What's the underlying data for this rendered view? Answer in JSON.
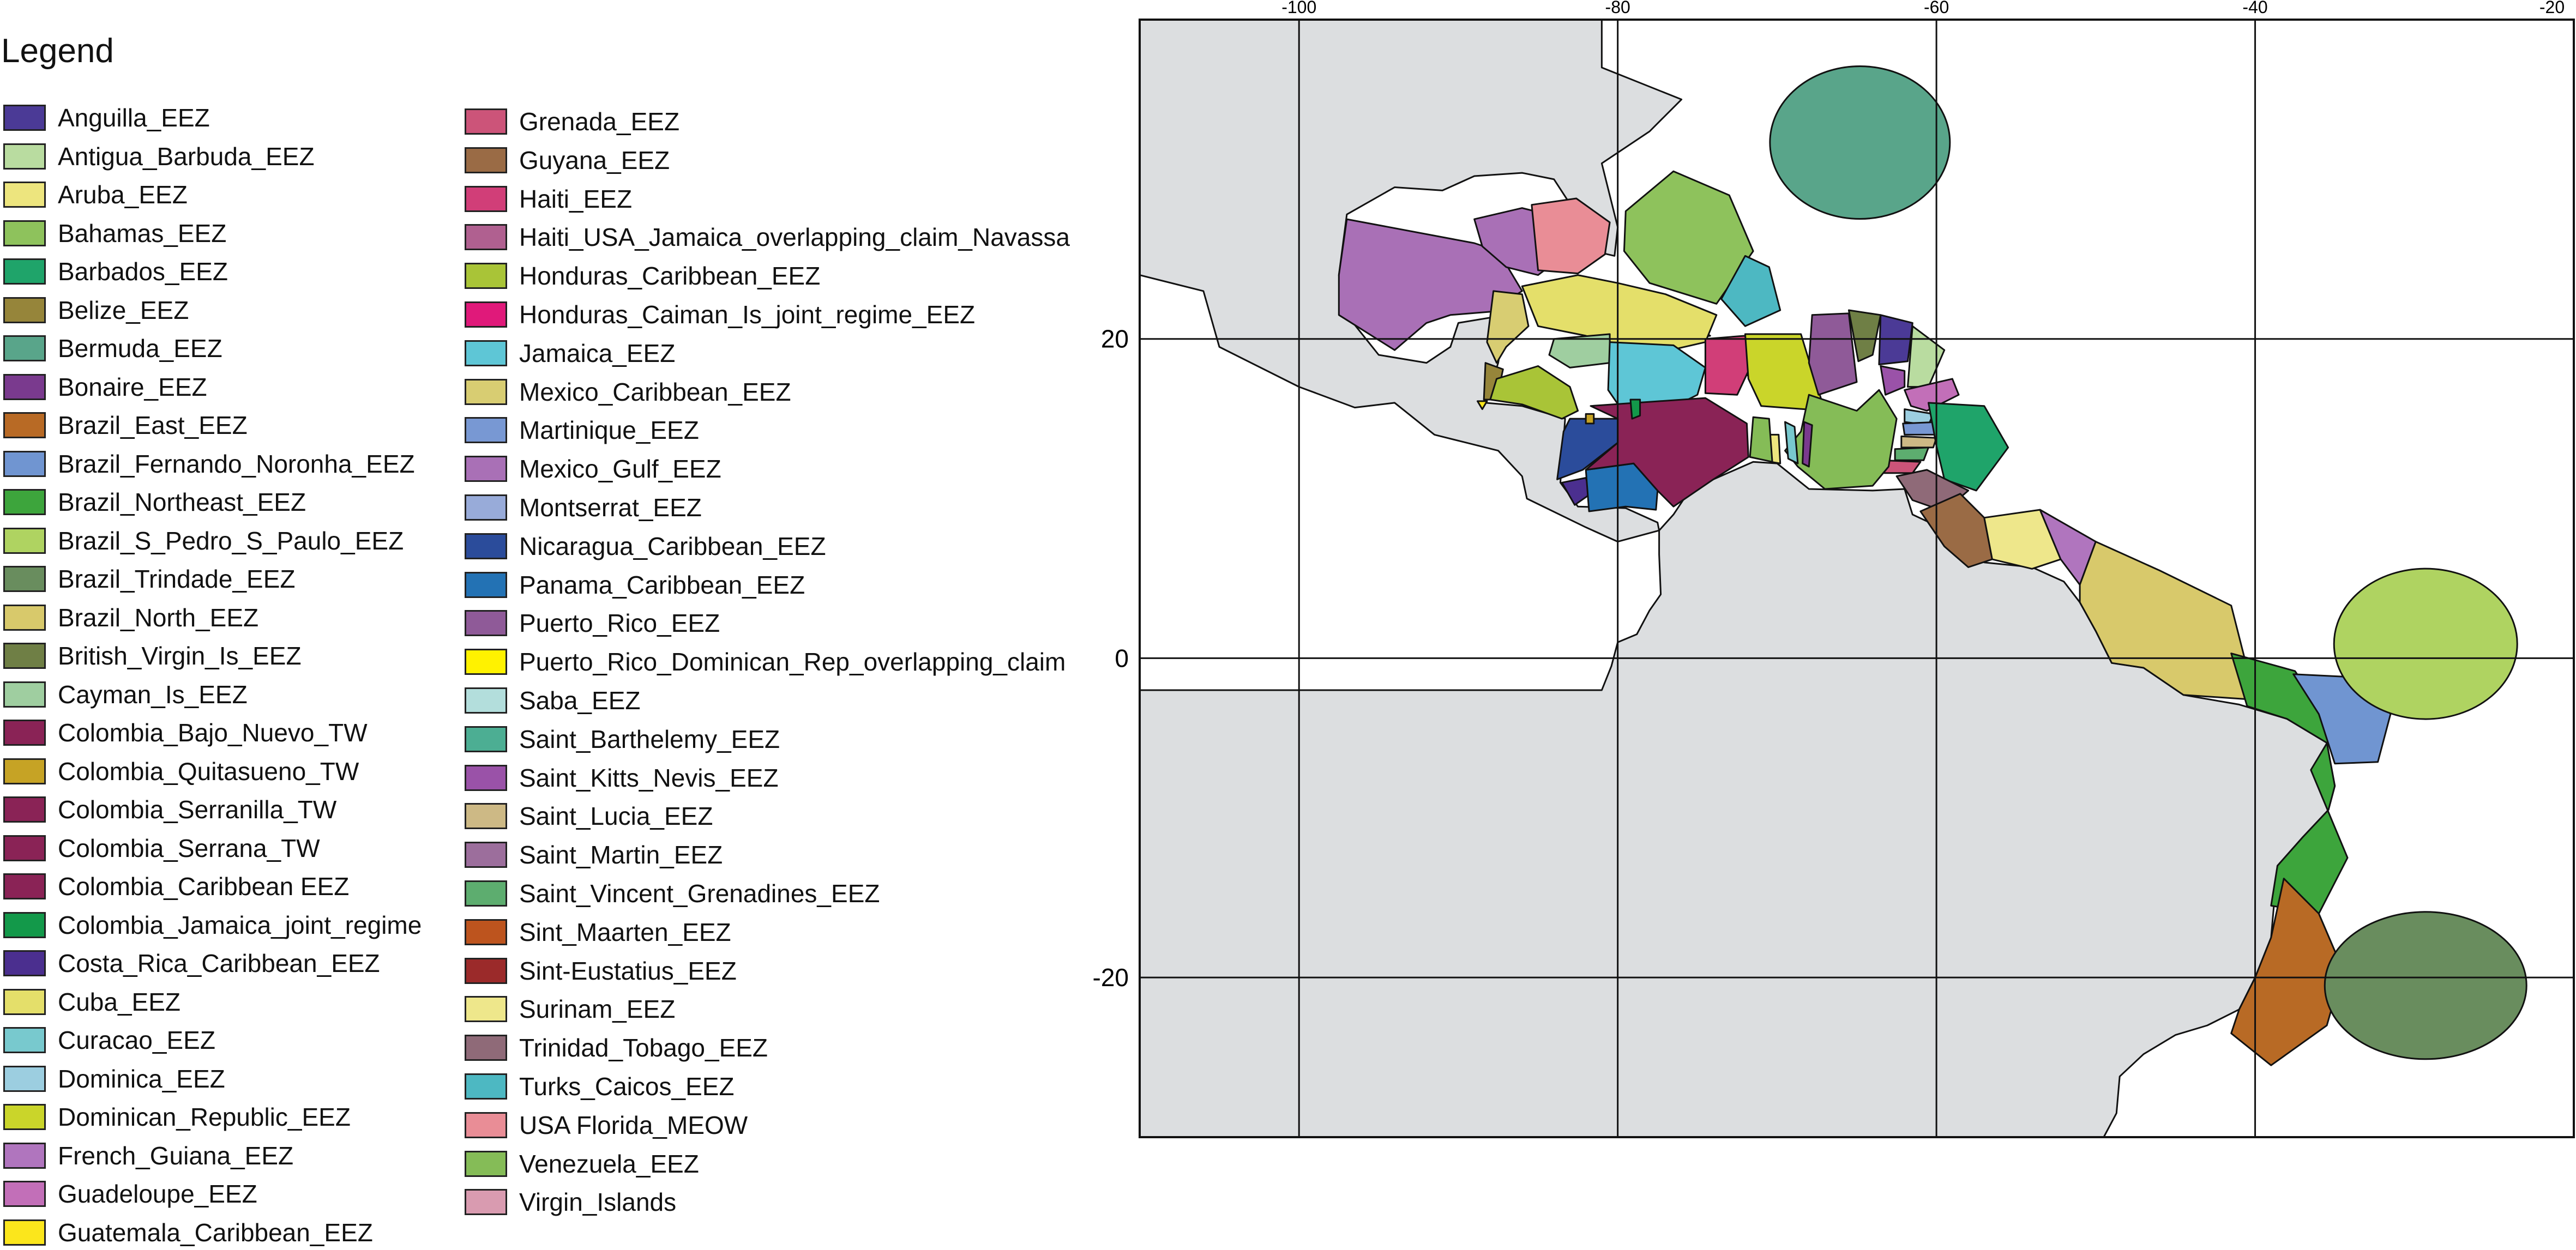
{
  "legend": {
    "title": "Legend",
    "col1": [
      {
        "label": "Anguilla_EEZ",
        "color": "#4b3a96"
      },
      {
        "label": "Antigua_Barbuda_EEZ",
        "color": "#b9dca0"
      },
      {
        "label": "Aruba_EEZ",
        "color": "#ede57e"
      },
      {
        "label": "Bahamas_EEZ",
        "color": "#8ec25c"
      },
      {
        "label": "Barbados_EEZ",
        "color": "#1fa46a"
      },
      {
        "label": "Belize_EEZ",
        "color": "#96853a"
      },
      {
        "label": "Bermuda_EEZ",
        "color": "#59a58a"
      },
      {
        "label": "Bonaire_EEZ",
        "color": "#7a3a8e"
      },
      {
        "label": "Brazil_East_EEZ",
        "color": "#b86a25"
      },
      {
        "label": "Brazil_Fernando_Noronha_EEZ",
        "color": "#7095d1"
      },
      {
        "label": "Brazil_Northeast_EEZ",
        "color": "#3da53c"
      },
      {
        "label": "Brazil_S_Pedro_S_Paulo_EEZ",
        "color": "#afd361"
      },
      {
        "label": "Brazil_Trindade_EEZ",
        "color": "#698d5e"
      },
      {
        "label": "Brazil_North_EEZ",
        "color": "#d8c96b"
      },
      {
        "label": "British_Virgin_Is_EEZ",
        "color": "#6f7f45"
      },
      {
        "label": "Cayman_Is_EEZ",
        "color": "#9fcea0"
      },
      {
        "label": "Colombia_Bajo_Nuevo_TW",
        "color": "#8a2356"
      },
      {
        "label": "Colombia_Quitasueno_TW",
        "color": "#c6a325"
      },
      {
        "label": "Colombia_Serranilla_TW",
        "color": "#8a2356"
      },
      {
        "label": "Colombia_Serrana_TW",
        "color": "#8a2356"
      },
      {
        "label": "Colombia_Caribbean EEZ",
        "color": "#8a2356"
      },
      {
        "label": "Colombia_Jamaica_joint_regime",
        "color": "#13994a"
      },
      {
        "label": "Costa_Rica_Caribbean_EEZ",
        "color": "#4b2f8f"
      },
      {
        "label": "Cuba_EEZ",
        "color": "#e4df6a"
      },
      {
        "label": "Curacao_EEZ",
        "color": "#78c9ce"
      },
      {
        "label": "Dominica_EEZ",
        "color": "#9ccee0"
      },
      {
        "label": "Dominican_Republic_EEZ",
        "color": "#cad52a"
      },
      {
        "label": "French_Guiana_EEZ",
        "color": "#b075be"
      },
      {
        "label": "Guadeloupe_EEZ",
        "color": "#c26fb8"
      },
      {
        "label": "Guatemala_Caribbean_EEZ",
        "color": "#fbe61c"
      }
    ],
    "col2": [
      {
        "label": "Grenada_EEZ",
        "color": "#cc5479"
      },
      {
        "label": "Guyana_EEZ",
        "color": "#9a6b45"
      },
      {
        "label": "Haiti_EEZ",
        "color": "#d13e78"
      },
      {
        "label": "Haiti_USA_Jamaica_overlapping_claim_Navassa",
        "color": "#b06090"
      },
      {
        "label": "Honduras_Caribbean_EEZ",
        "color": "#a9c437"
      },
      {
        "label": "Honduras_Caiman_Is_joint_regime_EEZ",
        "color": "#e0197a"
      },
      {
        "label": "Jamaica_EEZ",
        "color": "#5ec6d6"
      },
      {
        "label": "Mexico_Caribbean_EEZ",
        "color": "#d8cd72"
      },
      {
        "label": "Martinique_EEZ",
        "color": "#7898d3"
      },
      {
        "label": "Mexico_Gulf_EEZ",
        "color": "#a970b6"
      },
      {
        "label": "Montserrat_EEZ",
        "color": "#98abd9"
      },
      {
        "label": "Nicaragua_Caribbean_EEZ",
        "color": "#2b4c9b"
      },
      {
        "label": "Panama_Caribbean_EEZ",
        "color": "#2372b4"
      },
      {
        "label": "Puerto_Rico_EEZ",
        "color": "#8f5a98"
      },
      {
        "label": "Puerto_Rico_Dominican_Rep_overlapping_claim",
        "color": "#fff200"
      },
      {
        "label": "Saba_EEZ",
        "color": "#b3dedc"
      },
      {
        "label": "Saint_Barthelemy_EEZ",
        "color": "#4cae93"
      },
      {
        "label": "Saint_Kitts_Nevis_EEZ",
        "color": "#9a52a8"
      },
      {
        "label": "Saint_Lucia_EEZ",
        "color": "#cdb985"
      },
      {
        "label": "Saint_Martin_EEZ",
        "color": "#9c6e9c"
      },
      {
        "label": "Saint_Vincent_Grenadines_EEZ",
        "color": "#5dad6f"
      },
      {
        "label": "Sint_Maarten_EEZ",
        "color": "#bd541e"
      },
      {
        "label": "Sint-Eustatius_EEZ",
        "color": "#9b2a2a"
      },
      {
        "label": "Surinam_EEZ",
        "color": "#eee78b"
      },
      {
        "label": "Trinidad_Tobago_EEZ",
        "color": "#8f6a78"
      },
      {
        "label": "Turks_Caicos_EEZ",
        "color": "#4db8c2"
      },
      {
        "label": "USA Florida_MEOW",
        "color": "#e98d96"
      },
      {
        "label": "Venezuela_EEZ",
        "color": "#85bc57"
      },
      {
        "label": "Virgin_Islands",
        "color": "#d99bb0"
      }
    ]
  },
  "map": {
    "lon_ticks": [
      "-100",
      "-80",
      "-60",
      "-40",
      "-20"
    ],
    "lat_ticks": [
      "20",
      "0",
      "-20"
    ],
    "lon_range": [
      -110,
      -20
    ],
    "lat_range": [
      -30,
      40
    ],
    "colors": {
      "ocean": "#ffffff",
      "land": "#dcdee0",
      "border": "#111111",
      "grid": "#111111"
    }
  }
}
